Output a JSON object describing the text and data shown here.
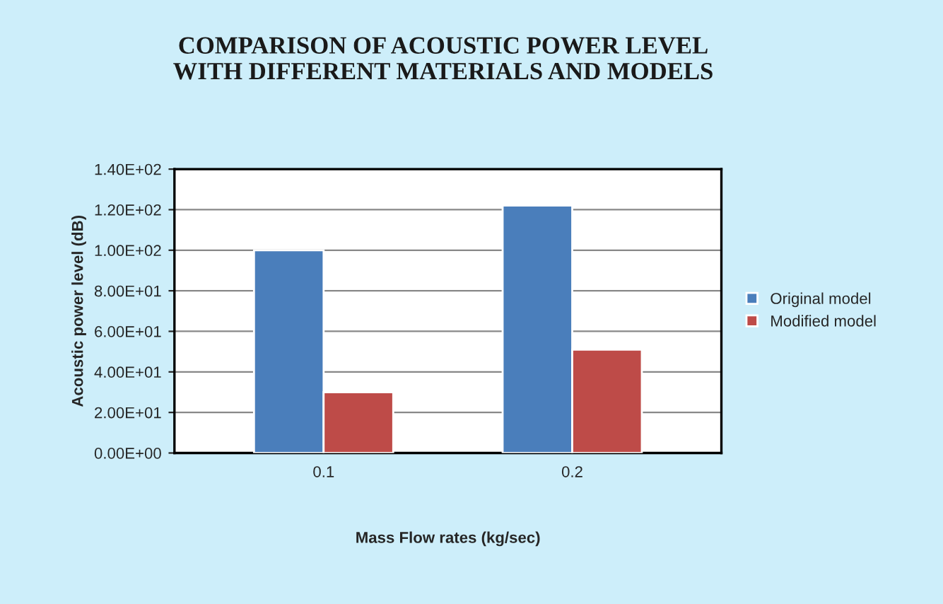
{
  "chart_data": {
    "type": "bar",
    "title": "COMPARISON OF ACOUSTIC POWER LEVEL\nWITH DIFFERENT MATERIALS AND MODELS",
    "xlabel": "Mass Flow rates (kg/sec)",
    "ylabel": "Acoustic power level (dB)",
    "categories": [
      "0.1",
      "0.2"
    ],
    "series": [
      {
        "name": "Original model",
        "color": "#4a7ebb",
        "values": [
          100,
          122
        ]
      },
      {
        "name": "Modified model",
        "color": "#be4b48",
        "values": [
          30,
          51
        ]
      }
    ],
    "ylim": [
      0,
      140
    ],
    "yticks": [
      {
        "value": 0,
        "label": "0.00E+00"
      },
      {
        "value": 20,
        "label": "2.00E+01"
      },
      {
        "value": 40,
        "label": "4.00E+01"
      },
      {
        "value": 60,
        "label": "6.00E+01"
      },
      {
        "value": 80,
        "label": "8.00E+01"
      },
      {
        "value": 100,
        "label": "1.00E+02"
      },
      {
        "value": 120,
        "label": "1.20E+02"
      },
      {
        "value": 140,
        "label": "1.40E+02"
      }
    ],
    "grid": "y",
    "legend": "right"
  }
}
